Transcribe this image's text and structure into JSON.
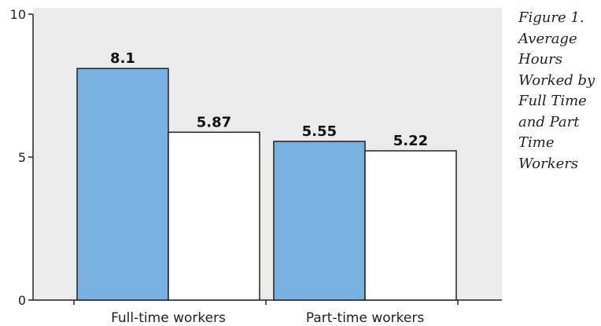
{
  "caption": "Figure 1. Average Hours Worked by Full Time and Part Time Workers",
  "chart_data": {
    "type": "bar",
    "title": "",
    "xlabel": "",
    "ylabel": "",
    "ylim": [
      0,
      10
    ],
    "yticks": [
      0,
      5,
      10
    ],
    "categories": [
      "Full-time workers",
      "Part-time workers"
    ],
    "series": [
      {
        "values": [
          8.1,
          5.55
        ],
        "color": "#78b0e0"
      },
      {
        "values": [
          5.87,
          5.22
        ],
        "color": "#ffffff"
      }
    ],
    "data_labels": [
      [
        "8.1",
        "5.55"
      ],
      [
        "5.87",
        "5.22"
      ]
    ],
    "plot_background": "#ebebeb",
    "grid": false,
    "legend": "none"
  }
}
